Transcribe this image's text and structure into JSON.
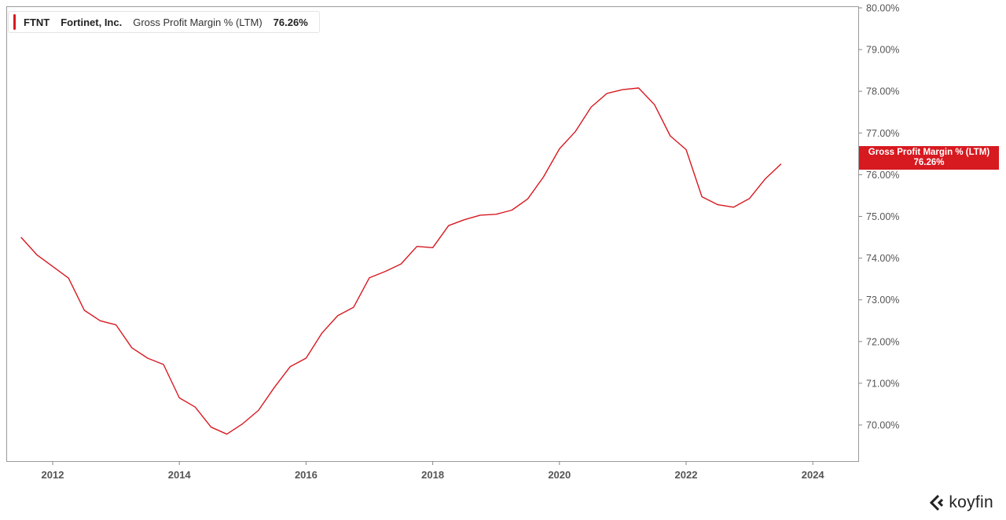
{
  "legend": {
    "ticker": "FTNT",
    "company": "Fortinet, Inc.",
    "metric": "Gross Profit Margin % (LTM)",
    "value": "76.26%"
  },
  "price_tag": {
    "label": "Gross Profit Margin % (LTM)",
    "value": "76.26%"
  },
  "brand": {
    "name": "koyfin",
    "icon": "koyfin-logo-icon"
  },
  "colors": {
    "line": "#d71920",
    "tag_bg": "#d71920",
    "axis": "#888888"
  },
  "chart_data": {
    "type": "line",
    "title": "",
    "xlabel": "",
    "ylabel": "",
    "xlim": [
      2011.4,
      2025.4
    ],
    "ylim": [
      69.4,
      80.0
    ],
    "x_ticks": [
      2012,
      2014,
      2016,
      2018,
      2020,
      2022,
      2024
    ],
    "x_tick_labels": [
      "2012",
      "2014",
      "2016",
      "2018",
      "2020",
      "2022",
      "2024"
    ],
    "y_ticks": [
      70,
      71,
      72,
      73,
      74,
      75,
      76,
      77,
      78,
      79,
      80
    ],
    "y_tick_labels": [
      "70.00%",
      "71.00%",
      "72.00%",
      "73.00%",
      "74.00%",
      "75.00%",
      "76.00%",
      "77.00%",
      "78.00%",
      "79.00%",
      "80.00%"
    ],
    "grid": false,
    "series": [
      {
        "name": "Gross Profit Margin % (LTM)",
        "x": [
          2011.5,
          2011.75,
          2012.0,
          2012.25,
          2012.5,
          2012.75,
          2013.0,
          2013.25,
          2013.5,
          2013.75,
          2014.0,
          2014.25,
          2014.5,
          2014.75,
          2015.0,
          2015.25,
          2015.5,
          2015.75,
          2016.0,
          2016.25,
          2016.5,
          2016.75,
          2017.0,
          2017.25,
          2017.5,
          2017.75,
          2018.0,
          2018.25,
          2018.5,
          2018.75,
          2019.0,
          2019.25,
          2019.5,
          2019.75,
          2020.0,
          2020.25,
          2020.5,
          2020.75,
          2021.0,
          2021.25,
          2021.5,
          2021.75,
          2022.0,
          2022.25,
          2022.5,
          2022.75,
          2023.0,
          2023.25,
          2023.5
        ],
        "y": [
          74.5,
          74.08,
          73.8,
          73.52,
          72.75,
          72.5,
          72.4,
          71.85,
          71.6,
          71.45,
          70.65,
          70.43,
          69.95,
          69.78,
          70.03,
          70.35,
          70.9,
          71.4,
          71.6,
          72.2,
          72.62,
          72.82,
          73.53,
          73.68,
          73.86,
          74.28,
          74.25,
          74.78,
          74.92,
          75.03,
          75.05,
          75.15,
          75.42,
          75.95,
          76.62,
          77.03,
          77.62,
          77.95,
          78.04,
          78.08,
          77.68,
          76.93,
          76.6,
          75.47,
          75.28,
          75.22,
          75.43,
          75.9,
          76.26
        ]
      }
    ]
  }
}
